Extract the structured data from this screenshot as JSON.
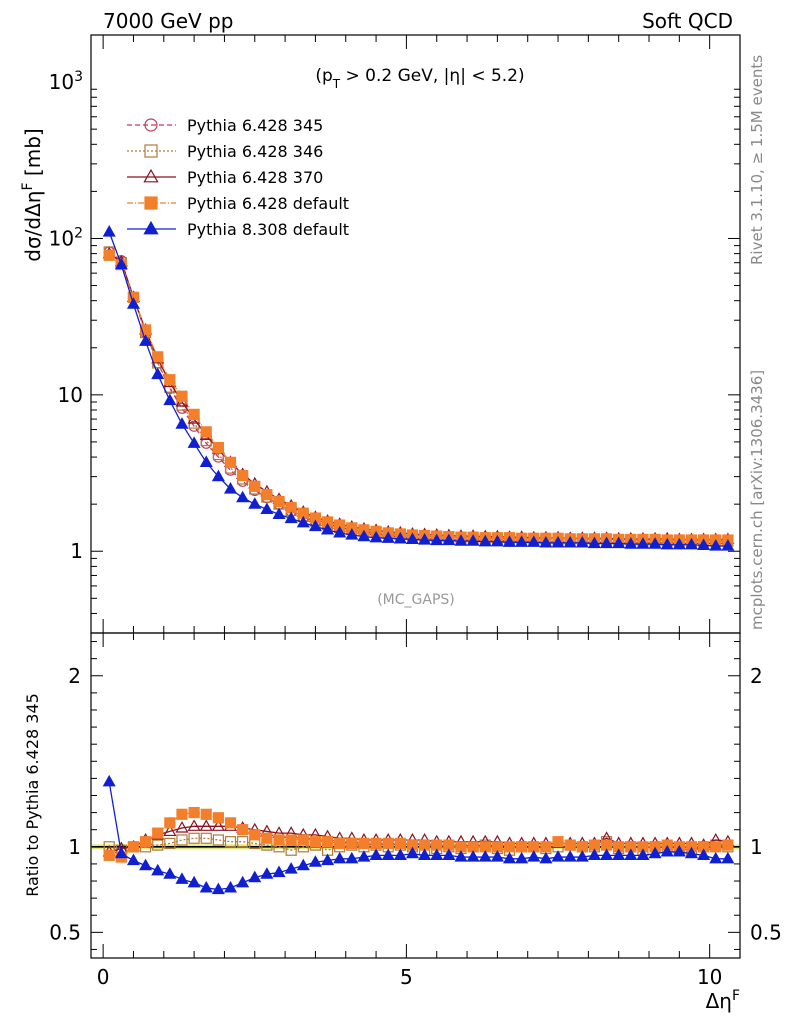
{
  "header": {
    "left_label": "7000 GeV pp",
    "right_label": "Soft QCD"
  },
  "side_labels": {
    "rivet": "Rivet 3.1.10, ≥ 1.5M events",
    "mcplots": "mcplots.cern.ch [arXiv:1306.3436]"
  },
  "chart_data": [
    {
      "type": "line",
      "panel": "main",
      "cut_label": "(p_T > 0.2 GeV, |η| < 5.2)",
      "watermark": "(MC_GAPS)",
      "ylabel": "dσ/dΔη^F [mb]",
      "yscale": "log",
      "xlim": [
        -0.2,
        10.5
      ],
      "ylim": [
        0.3,
        2000
      ],
      "y_ticks": [
        1,
        10,
        100,
        1000
      ],
      "y_tick_labels": [
        "1",
        "10",
        "10^2",
        "10^3"
      ],
      "legend_position": "top-left",
      "x": [
        0.1,
        0.3,
        0.5,
        0.7,
        0.9,
        1.1,
        1.3,
        1.5,
        1.7,
        1.9,
        2.1,
        2.3,
        2.5,
        2.7,
        2.9,
        3.1,
        3.3,
        3.5,
        3.7,
        3.9,
        4.1,
        4.3,
        4.5,
        4.7,
        4.9,
        5.1,
        5.3,
        5.5,
        5.7,
        5.9,
        6.1,
        6.3,
        6.5,
        6.7,
        6.9,
        7.1,
        7.3,
        7.5,
        7.7,
        7.9,
        8.1,
        8.3,
        8.5,
        8.7,
        8.9,
        9.1,
        9.3,
        9.5,
        9.7,
        9.9,
        10.1,
        10.3
      ],
      "series": [
        {
          "name": "Pythia 6.428 345",
          "color": "#c0395a",
          "marker": "circle-open",
          "dash": "5,3",
          "values": [
            82,
            72,
            42,
            25,
            16,
            11,
            8.2,
            6.3,
            4.9,
            4.0,
            3.3,
            2.8,
            2.45,
            2.2,
            2.0,
            1.8,
            1.65,
            1.55,
            1.48,
            1.42,
            1.37,
            1.34,
            1.31,
            1.29,
            1.27,
            1.26,
            1.25,
            1.24,
            1.24,
            1.23,
            1.23,
            1.22,
            1.22,
            1.22,
            1.21,
            1.21,
            1.21,
            1.2,
            1.2,
            1.2,
            1.19,
            1.19,
            1.19,
            1.18,
            1.18,
            1.18,
            1.17,
            1.17,
            1.17,
            1.16,
            1.16,
            1.16
          ]
        },
        {
          "name": "Pythia 6.428 346",
          "color": "#b07a3c",
          "marker": "square-open",
          "dash": "2,2",
          "values": [
            82,
            70,
            42,
            25,
            16,
            11.2,
            8.6,
            6.6,
            5.1,
            4.15,
            3.4,
            2.9,
            2.5,
            2.22,
            2.0,
            1.82,
            1.67,
            1.56,
            1.48,
            1.42,
            1.38,
            1.35,
            1.32,
            1.3,
            1.28,
            1.26,
            1.25,
            1.24,
            1.23,
            1.22,
            1.22,
            1.21,
            1.21,
            1.2,
            1.2,
            1.2,
            1.2,
            1.19,
            1.19,
            1.19,
            1.19,
            1.18,
            1.18,
            1.18,
            1.17,
            1.17,
            1.17,
            1.16,
            1.16,
            1.16,
            1.16,
            1.16
          ]
        },
        {
          "name": "Pythia 6.428 370",
          "color": "#8b1020",
          "marker": "triangle-open",
          "dash": "",
          "values": [
            80,
            71,
            42,
            26,
            17,
            12,
            9.0,
            7.0,
            5.5,
            4.5,
            3.7,
            3.1,
            2.7,
            2.4,
            2.15,
            1.95,
            1.78,
            1.65,
            1.56,
            1.49,
            1.43,
            1.39,
            1.36,
            1.33,
            1.31,
            1.29,
            1.28,
            1.27,
            1.26,
            1.25,
            1.25,
            1.24,
            1.24,
            1.23,
            1.23,
            1.22,
            1.22,
            1.22,
            1.21,
            1.21,
            1.21,
            1.21,
            1.2,
            1.2,
            1.2,
            1.2,
            1.2,
            1.19,
            1.19,
            1.19,
            1.19,
            1.19
          ]
        },
        {
          "name": "Pythia 6.428 default",
          "color": "#f47f2b",
          "marker": "square-filled",
          "dash": "6,2,1,2",
          "values": [
            78,
            68,
            42,
            26,
            17.5,
            12.5,
            9.8,
            7.5,
            5.8,
            4.6,
            3.7,
            3.05,
            2.6,
            2.3,
            2.08,
            1.9,
            1.75,
            1.63,
            1.54,
            1.47,
            1.41,
            1.37,
            1.34,
            1.31,
            1.29,
            1.27,
            1.26,
            1.25,
            1.24,
            1.23,
            1.23,
            1.22,
            1.22,
            1.22,
            1.21,
            1.21,
            1.21,
            1.21,
            1.2,
            1.2,
            1.2,
            1.2,
            1.19,
            1.19,
            1.19,
            1.19,
            1.18,
            1.18,
            1.18,
            1.18,
            1.18,
            1.18
          ]
        },
        {
          "name": "Pythia 8.308 default",
          "color": "#1020d0",
          "marker": "triangle-filled",
          "dash": "",
          "values": [
            110,
            68,
            38,
            22,
            13.5,
            9.2,
            6.5,
            4.9,
            3.7,
            3.0,
            2.5,
            2.2,
            2.0,
            1.85,
            1.72,
            1.62,
            1.52,
            1.44,
            1.37,
            1.31,
            1.27,
            1.24,
            1.22,
            1.21,
            1.2,
            1.19,
            1.18,
            1.17,
            1.17,
            1.16,
            1.16,
            1.15,
            1.15,
            1.14,
            1.14,
            1.14,
            1.13,
            1.13,
            1.13,
            1.13,
            1.12,
            1.12,
            1.12,
            1.11,
            1.11,
            1.11,
            1.1,
            1.1,
            1.1,
            1.09,
            1.08,
            1.08
          ]
        }
      ]
    },
    {
      "type": "line",
      "panel": "ratio",
      "ylabel": "Ratio to Pythia 6.428 345",
      "xlabel": "Δη^F",
      "xlim": [
        -0.2,
        10.5
      ],
      "ylim": [
        0.35,
        2.25
      ],
      "y_ticks": [
        0.5,
        1,
        2
      ],
      "y_tick_labels": [
        "0.5",
        "1",
        "2"
      ],
      "x_ticks": [
        0,
        5,
        10
      ],
      "x_tick_labels": [
        "0",
        "5",
        "10"
      ],
      "band": {
        "color": "#ccdd22",
        "low": 0.985,
        "high": 1.015
      },
      "reference_line": 1,
      "x": [
        0.1,
        0.3,
        0.5,
        0.7,
        0.9,
        1.1,
        1.3,
        1.5,
        1.7,
        1.9,
        2.1,
        2.3,
        2.5,
        2.7,
        2.9,
        3.1,
        3.3,
        3.5,
        3.7,
        3.9,
        4.1,
        4.3,
        4.5,
        4.7,
        4.9,
        5.1,
        5.3,
        5.5,
        5.7,
        5.9,
        6.1,
        6.3,
        6.5,
        6.7,
        6.9,
        7.1,
        7.3,
        7.5,
        7.7,
        7.9,
        8.1,
        8.3,
        8.5,
        8.7,
        8.9,
        9.1,
        9.3,
        9.5,
        9.7,
        9.9,
        10.1,
        10.3
      ],
      "series": [
        {
          "name": "Pythia 6.428 345",
          "values": [
            1,
            1,
            1,
            1,
            1,
            1,
            1,
            1,
            1,
            1,
            1,
            1,
            1,
            1,
            1,
            1,
            1,
            1,
            1,
            1,
            1,
            1,
            1,
            1,
            1,
            1,
            1,
            1,
            1,
            1,
            1,
            1,
            1,
            1,
            1,
            1,
            1,
            1,
            1,
            1,
            1,
            1,
            1,
            1,
            1,
            1,
            1,
            1,
            1,
            1,
            1,
            1
          ]
        },
        {
          "name": "Pythia 6.428 346",
          "values": [
            1.0,
            0.98,
            1.0,
            1.0,
            1.01,
            1.02,
            1.04,
            1.05,
            1.05,
            1.04,
            1.03,
            1.03,
            1.02,
            1.01,
            1.0,
            0.98,
            1.0,
            1.01,
            0.98,
            1.0,
            1.01,
            1.0,
            1.01,
            1.0,
            1.01,
            1.0,
            0.98,
            0.99,
            1.0,
            0.99,
            1.0,
            1.01,
            0.99,
            0.98,
            1.0,
            1.0,
            0.99,
            1.0,
            1.01,
            1.0,
            1.0,
            1.03,
            0.99,
            1.0,
            0.98,
            1.0,
            1.0,
            0.99,
            0.98,
            1.0,
            1.01,
            1.0
          ]
        },
        {
          "name": "Pythia 6.428 370",
          "values": [
            0.97,
            0.99,
            1.0,
            1.04,
            1.07,
            1.09,
            1.11,
            1.12,
            1.12,
            1.12,
            1.12,
            1.11,
            1.1,
            1.09,
            1.08,
            1.08,
            1.07,
            1.07,
            1.06,
            1.05,
            1.05,
            1.04,
            1.04,
            1.04,
            1.04,
            1.04,
            1.04,
            1.03,
            1.03,
            1.03,
            1.03,
            1.03,
            1.03,
            1.02,
            1.02,
            1.02,
            1.02,
            1.02,
            1.02,
            1.02,
            1.02,
            1.05,
            1.02,
            1.02,
            1.02,
            1.02,
            1.02,
            1.02,
            1.02,
            1.01,
            1.04,
            1.03
          ]
        },
        {
          "name": "Pythia 6.428 default",
          "values": [
            0.95,
            0.94,
            1.0,
            1.03,
            1.08,
            1.14,
            1.19,
            1.2,
            1.19,
            1.17,
            1.14,
            1.1,
            1.07,
            1.05,
            1.04,
            1.04,
            1.04,
            1.03,
            1.03,
            1.02,
            1.02,
            1.02,
            1.02,
            1.02,
            1.02,
            1.01,
            1.01,
            1.01,
            1.01,
            1.0,
            1.0,
            1.0,
            1.0,
            1.0,
            1.0,
            1.0,
            1.0,
            1.03,
            1.01,
            1.0,
            1.01,
            1.01,
            1.0,
            1.0,
            1.0,
            1.0,
            1.01,
            1.0,
            1.0,
            1.0,
            1.0,
            1.01
          ]
        },
        {
          "name": "Pythia 8.308 default",
          "values": [
            1.38,
            0.96,
            0.92,
            0.89,
            0.86,
            0.84,
            0.81,
            0.79,
            0.76,
            0.75,
            0.76,
            0.79,
            0.82,
            0.84,
            0.85,
            0.87,
            0.89,
            0.91,
            0.92,
            0.93,
            0.93,
            0.94,
            0.95,
            0.95,
            0.95,
            0.96,
            0.95,
            0.95,
            0.95,
            0.94,
            0.94,
            0.94,
            0.94,
            0.93,
            0.93,
            0.94,
            0.93,
            0.94,
            0.94,
            0.94,
            0.95,
            0.95,
            0.95,
            0.95,
            0.95,
            0.96,
            0.97,
            0.97,
            0.96,
            0.95,
            0.93,
            0.93
          ]
        }
      ]
    }
  ]
}
